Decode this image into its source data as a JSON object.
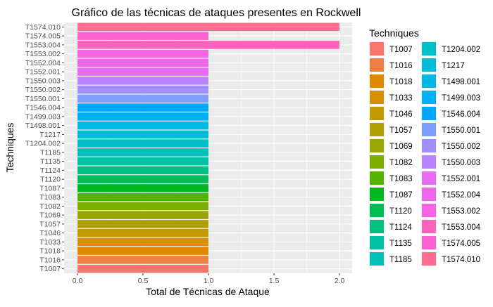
{
  "chart_data": {
    "type": "bar",
    "orientation": "horizontal",
    "title": "Gráfico de las técnicas de ataques presentes en Rockwell",
    "xlabel": "Total de Técnicas de Ataque",
    "ylabel": "Techniques",
    "xlim": [
      0,
      2
    ],
    "x_ticks": [
      "0.0",
      "0.5",
      "1.0",
      "1.5",
      "2.0"
    ],
    "grid": true,
    "panel_background": "#EBEBEB",
    "legend_position": "right",
    "legend_title": "Techniques",
    "categories": [
      "T1007",
      "T1016",
      "T1018",
      "T1033",
      "T1046",
      "T1057",
      "T1069",
      "T1082",
      "T1083",
      "T1087",
      "T1120",
      "T1124",
      "T1135",
      "T1185",
      "T1204.002",
      "T1217",
      "T1498.001",
      "T1499.003",
      "T1546.004",
      "T1550.001",
      "T1550.002",
      "T1550.003",
      "T1552.001",
      "T1552.004",
      "T1553.002",
      "T1553.004",
      "T1574.005",
      "T1574.010"
    ],
    "values": [
      1,
      1,
      1,
      1,
      1,
      1,
      1,
      1,
      1,
      1,
      1,
      1,
      1,
      1,
      1,
      1,
      1,
      1,
      1,
      1,
      1,
      1,
      1,
      1,
      1,
      2,
      1,
      2
    ],
    "colors": [
      "#F8766D",
      "#EE8043",
      "#E38900",
      "#D59100",
      "#C49A00",
      "#B0A100",
      "#99A800",
      "#7CAE00",
      "#53B400",
      "#00B81F",
      "#00BC55",
      "#00C082",
      "#00C1A6",
      "#00C0BA",
      "#00BFCA",
      "#00BCD8",
      "#00B8E5",
      "#00B0F6",
      "#00A7FF",
      "#7F9FFF",
      "#A18FFF",
      "#BB83FF",
      "#E76BF3",
      "#F066EA",
      "#F564E3",
      "#FF62BC",
      "#FD61D1",
      "#FF6C91"
    ]
  }
}
